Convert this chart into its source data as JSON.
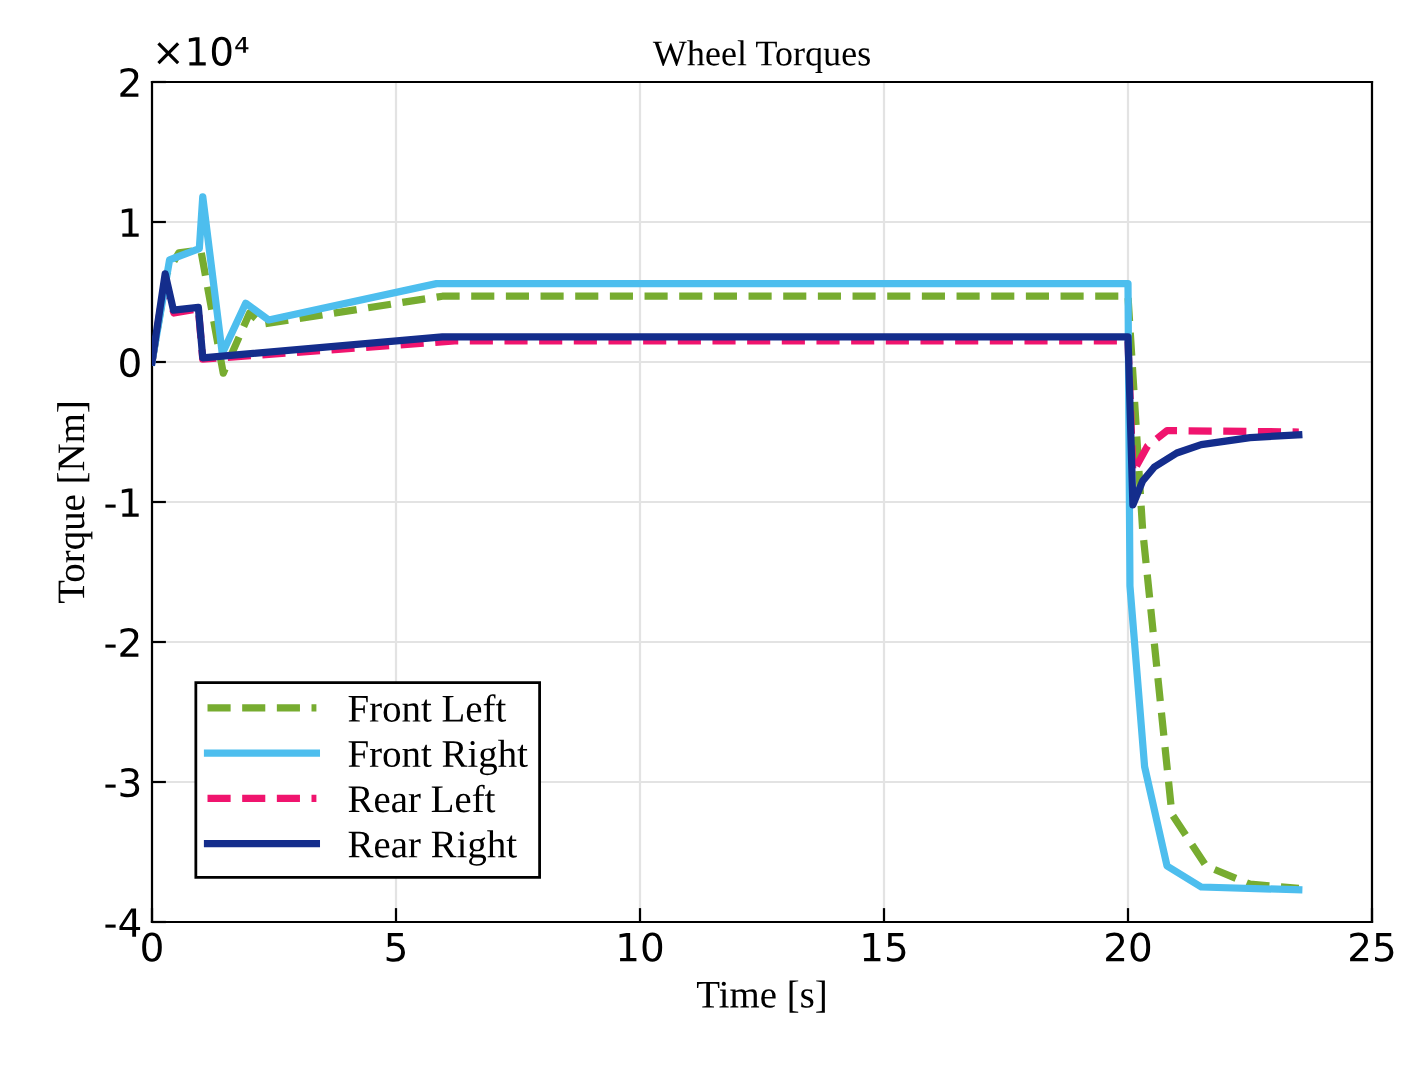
{
  "chart_data": {
    "type": "line",
    "title": "Wheel Torques",
    "xlabel": "Time [s]",
    "ylabel": "Torque [Nm]",
    "annotations": [
      "×10⁴"
    ],
    "xlim": [
      0,
      25
    ],
    "xticks": [
      0,
      5,
      10,
      15,
      20,
      25
    ],
    "ylim": [
      -4,
      2
    ],
    "yticks": [
      -4,
      -3,
      -2,
      -1,
      0,
      1,
      2
    ],
    "grid": true,
    "legend": "bottom left",
    "marker": "none",
    "series": [
      {
        "name": "Front Left",
        "color": "#77ac30",
        "line_style": "dashed",
        "x": [
          0,
          0.3,
          0.55,
          1.0,
          1.46,
          2.0,
          2.27,
          5.95,
          20.0,
          20.3,
          20.9,
          21.6,
          22.5,
          23.5
        ],
        "values": [
          0,
          0.63,
          0.78,
          0.8,
          -0.08,
          0.35,
          0.27,
          0.47,
          0.47,
          -1.2,
          -3.23,
          -3.6,
          -3.73,
          -3.76
        ]
      },
      {
        "name": "Front Right",
        "color": "#4dbeee",
        "line_style": "solid",
        "x": [
          0,
          0.36,
          0.97,
          1.04,
          1.44,
          1.92,
          2.39,
          5.83,
          20.0,
          20.04,
          20.34,
          20.8,
          21.5,
          23.5
        ],
        "values": [
          0,
          0.73,
          0.81,
          1.18,
          0.06,
          0.42,
          0.3,
          0.56,
          0.56,
          -1.6,
          -2.89,
          -3.6,
          -3.75,
          -3.77
        ]
      },
      {
        "name": "Rear Left",
        "color": "#f0146e",
        "line_style": "dashed",
        "x": [
          0,
          0.25,
          0.45,
          0.95,
          1.04,
          6.2,
          20.0,
          20.1,
          20.4,
          20.8,
          23.5
        ],
        "values": [
          0,
          0.55,
          0.35,
          0.38,
          0.02,
          0.15,
          0.15,
          -0.79,
          -0.6,
          -0.49,
          -0.5
        ]
      },
      {
        "name": "Rear Right",
        "color": "#142d8c",
        "line_style": "solid",
        "x": [
          0,
          0.27,
          0.44,
          0.95,
          1.04,
          5.95,
          20.0,
          20.1,
          20.3,
          20.54,
          21.0,
          21.5,
          22.5,
          23.5
        ],
        "values": [
          0,
          0.63,
          0.37,
          0.39,
          0.03,
          0.18,
          0.18,
          -1.02,
          -0.85,
          -0.75,
          -0.65,
          -0.59,
          -0.54,
          -0.52
        ]
      }
    ]
  }
}
